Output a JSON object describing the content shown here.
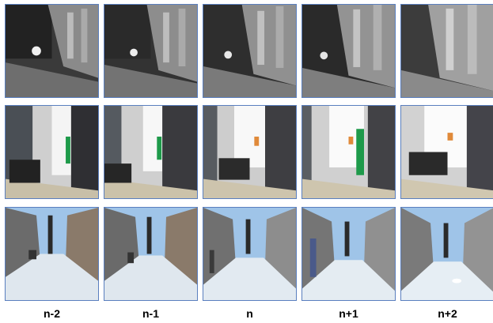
{
  "frame_labels": [
    "n-2",
    "n-1",
    "n",
    "n+1",
    "n+2"
  ],
  "rows": [
    {
      "scene": "night-street-building",
      "frames": [
        "n-2",
        "n-1",
        "n",
        "n+1",
        "n+2"
      ]
    },
    {
      "scene": "indoor-office-curtain",
      "frames": [
        "n-2",
        "n-1",
        "n",
        "n+1",
        "n+2"
      ]
    },
    {
      "scene": "snowy-street-pedestrians",
      "frames": [
        "n-2",
        "n-1",
        "n",
        "n+1",
        "n+2"
      ]
    }
  ],
  "colors": {
    "tile_border": "#5a7fbf",
    "curtain_green": "#1e9a4a",
    "sky_blue": "#9fc4e8",
    "snow": "#dfe7ee"
  }
}
